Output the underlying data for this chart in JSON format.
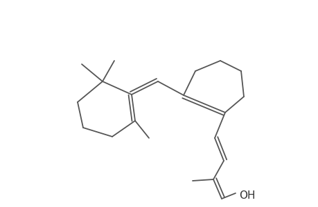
{
  "bg_color": "#ffffff",
  "line_color": "#555555",
  "line_width": 1.3,
  "fig_width": 4.6,
  "fig_height": 3.0,
  "dpi": 100
}
